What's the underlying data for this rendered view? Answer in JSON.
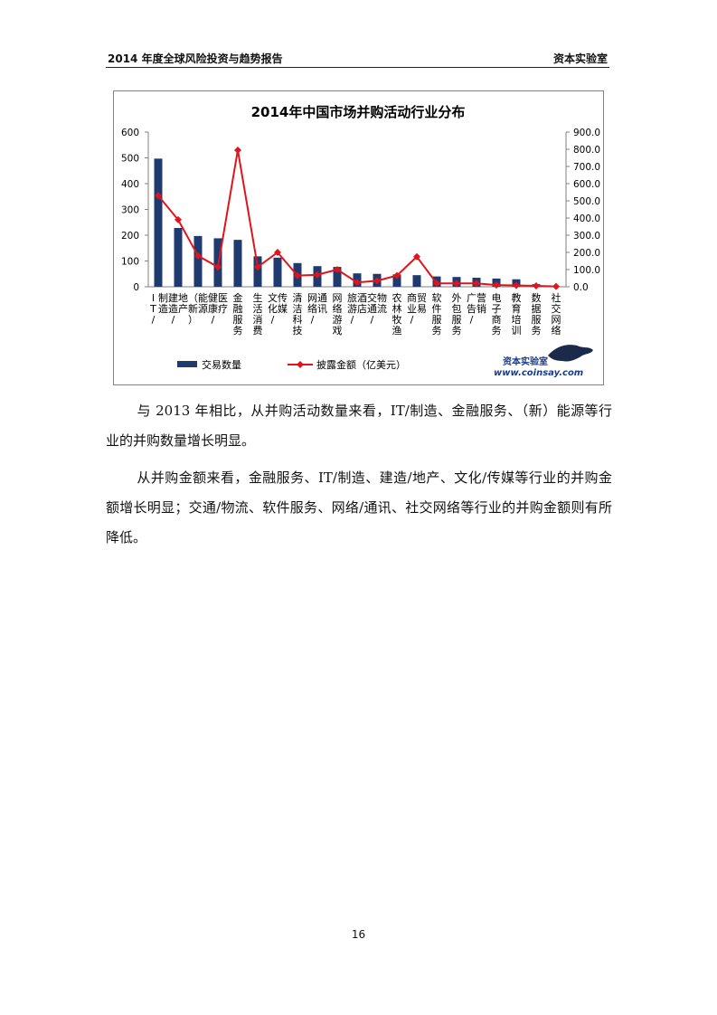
{
  "header": {
    "left": "2014 年度全球风险投资与趋势报告",
    "right": "资本实验室"
  },
  "chart_data": {
    "type": "bar",
    "title": "2014年中国市场并购活动行业分布",
    "categories": [
      "IT/制造",
      "建造/地产",
      "（新）能源",
      "健康/医疗",
      "金融服务",
      "生活消费",
      "文化/传媒",
      "清洁科技",
      "网络/通讯",
      "网络游戏",
      "旅游/酒店",
      "交通/物流",
      "农林牧渔",
      "商业/贸易",
      "软件服务",
      "外包服务",
      "广告/营销",
      "电子商务",
      "教育培训",
      "数据服务",
      "社交网络"
    ],
    "series": [
      {
        "name": "交易数量",
        "type": "bar",
        "axis": "left",
        "color": "#1f3a6e",
        "values": [
          497,
          228,
          197,
          188,
          182,
          118,
          113,
          92,
          80,
          77,
          52,
          50,
          48,
          45,
          40,
          38,
          35,
          32,
          29,
          10,
          2
        ]
      },
      {
        "name": "披露金额（亿美元）",
        "type": "line",
        "axis": "right",
        "color": "#e0151b",
        "values": [
          530,
          390,
          180,
          115,
          795,
          115,
          200,
          65,
          70,
          100,
          25,
          35,
          65,
          175,
          20,
          20,
          20,
          10,
          8,
          5,
          2
        ]
      }
    ],
    "y_left": {
      "min": 0,
      "max": 600,
      "ticks": [
        "0",
        "100",
        "200",
        "300",
        "400",
        "500",
        "600"
      ]
    },
    "y_right": {
      "min": 0,
      "max": 900,
      "ticks": [
        "0.0",
        "100.0",
        "200.0",
        "300.0",
        "400.0",
        "500.0",
        "600.0",
        "700.0",
        "800.0",
        "900.0"
      ]
    },
    "legend": {
      "placement": "bottom",
      "items": [
        "交易数量",
        "披露金额（亿美元）"
      ]
    },
    "grid": false
  },
  "logo": {
    "cn": "资本实验室",
    "url": "www.coinsay.com"
  },
  "paragraphs": [
    "与 2013 年相比，从并购活动数量来看，IT/制造、金融服务、（新）能源等行业的并购数量增长明显。",
    "从并购金额来看，金融服务、IT/制造、建造/地产、文化/传媒等行业的并购金额增长明显；交通/物流、软件服务、网络/通讯、社交网络等行业的并购金额则有所降低。"
  ],
  "page_number": "16"
}
